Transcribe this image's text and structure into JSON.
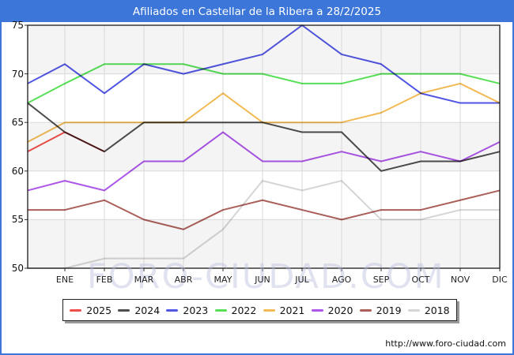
{
  "title": "Afiliados en Castellar de la Ribera a 28/2/2025",
  "watermark": "FORO-CIUDAD.COM",
  "footer_url": "http://www.foro-ciudad.com",
  "colors": {
    "accent_blue": "#3b76d8",
    "plot_border": "#1a1a1a",
    "grid": "#d9d9d9",
    "band": "#f4f4f4",
    "tick": "#333333"
  },
  "chart_data": {
    "type": "line",
    "title": "Afiliados en Castellar de la Ribera a 28/2/2025",
    "categories": [
      "ENE",
      "FEB",
      "MAR",
      "ABR",
      "MAY",
      "JUN",
      "JUL",
      "AGO",
      "SEP",
      "OCT",
      "NOV",
      "DIC"
    ],
    "ylim": [
      50,
      75
    ],
    "yticks": [
      75,
      70,
      65,
      60,
      55,
      50
    ],
    "grid": true,
    "legend_position": "bottom",
    "note_axis_start": "each series begins at the y-axis with the previous December value",
    "series": [
      {
        "name": "2025",
        "color": "#ef4f4a",
        "axis_start": 62,
        "values": [
          64,
          62
        ]
      },
      {
        "name": "2024",
        "color": "#4d4d4d",
        "axis_start": 67,
        "values": [
          64,
          62,
          65,
          65,
          65,
          65,
          64,
          64,
          60,
          61,
          61,
          62
        ]
      },
      {
        "name": "2023",
        "color": "#5156e3",
        "axis_start": 69,
        "values": [
          71,
          68,
          71,
          70,
          71,
          72,
          75,
          72,
          71,
          68,
          67,
          67
        ]
      },
      {
        "name": "2022",
        "color": "#57e057",
        "axis_start": 67,
        "values": [
          69,
          71,
          71,
          71,
          70,
          70,
          69,
          69,
          70,
          70,
          70,
          69
        ]
      },
      {
        "name": "2021",
        "color": "#f2ba55",
        "axis_start": 63,
        "values": [
          65,
          65,
          65,
          65,
          68,
          65,
          65,
          65,
          66,
          68,
          69,
          67
        ]
      },
      {
        "name": "2020",
        "color": "#ad57e8",
        "axis_start": 58,
        "values": [
          59,
          58,
          61,
          61,
          64,
          61,
          61,
          62,
          61,
          62,
          61,
          63
        ]
      },
      {
        "name": "2019",
        "color": "#ab5f5a",
        "axis_start": 56,
        "values": [
          56,
          57,
          55,
          54,
          56,
          57,
          56,
          55,
          56,
          56,
          57,
          58
        ]
      },
      {
        "name": "2018",
        "color": "#d5d5d5",
        "axis_start": 50,
        "values": [
          50,
          51,
          51,
          51,
          54,
          59,
          58,
          59,
          55,
          55,
          56,
          56
        ]
      }
    ]
  }
}
